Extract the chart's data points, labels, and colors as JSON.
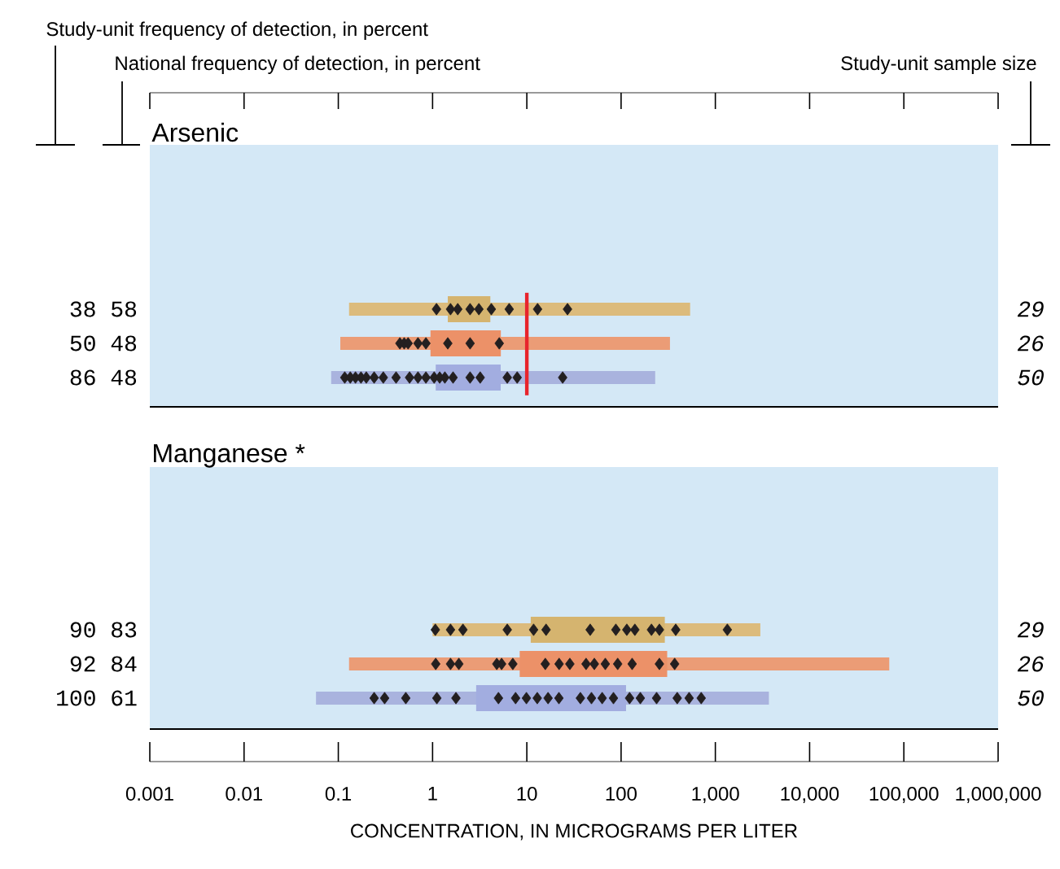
{
  "chart_data": [
    {
      "type": "bar",
      "title": "Arsenic",
      "orientation": "horizontal",
      "log": "x",
      "tick_labels": "y",
      "xlim": [
        0.001,
        1000000
      ],
      "xticks": [
        0.001,
        0.01,
        0.1,
        1,
        10,
        100,
        1000,
        10000,
        100000,
        1000000
      ],
      "categories": [
        "38 58",
        "50 48",
        "86 48"
      ],
      "annotations": [
        "Study-unit frequency of detection, in percent",
        "National frequency of detection, in percent",
        "Study-unit sample size",
        "29",
        "26",
        "50"
      ],
      "series": [
        {
          "colors": [
            "#dcbb7c",
            "#eb9c76",
            "#a9b3de"
          ],
          "base": [
            0.13,
            0.105,
            0.084
          ],
          "values": [
            540,
            330,
            230
          ]
        },
        {
          "colors": [
            "#d5b46f",
            "#ec9168",
            "#a2ade0"
          ],
          "base": [
            1.45,
            0.95,
            1.08
          ],
          "values": [
            2.65,
            4.35,
            4.2
          ]
        },
        {
          "type": "scatter",
          "color": "#231f20",
          "marker": "diamond",
          "x": [
            "38 58",
            "38 58",
            "38 58",
            "38 58",
            "38 58",
            "38 58",
            "38 58",
            "38 58",
            "38 58"
          ],
          "values": [
            1.1,
            1.55,
            1.85,
            2.5,
            3.1,
            4.2,
            6.5,
            13,
            27
          ]
        },
        {
          "type": "scatter",
          "color": "#231f20",
          "marker": "diamond",
          "x": [
            "50 48",
            "50 48",
            "50 48",
            "50 48",
            "50 48",
            "50 48",
            "50 48",
            "50 48"
          ],
          "values": [
            0.45,
            0.5,
            0.55,
            0.7,
            0.85,
            1.45,
            2.5,
            5.1
          ]
        },
        {
          "type": "scatter",
          "color": "#231f20",
          "marker": "diamond",
          "x": [
            "86 48",
            "86 48",
            "86 48",
            "86 48",
            "86 48",
            "86 48",
            "86 48",
            "86 48",
            "86 48",
            "86 48",
            "86 48",
            "86 48",
            "86 48",
            "86 48",
            "86 48",
            "86 48",
            "86 48",
            "86 48",
            "86 48",
            "86 48"
          ],
          "values": [
            0.117,
            0.134,
            0.152,
            0.174,
            0.198,
            0.24,
            0.3,
            0.41,
            0.57,
            0.7,
            0.85,
            1.04,
            1.19,
            1.35,
            1.65,
            2.5,
            3.2,
            6.2,
            7.9,
            24
          ]
        }
      ],
      "ref_lines": [
        {
          "axis": "x",
          "value": 10,
          "color": "#e8242c"
        }
      ]
    },
    {
      "type": "bar",
      "title": "Manganese *",
      "xlabel": "CONCENTRATION, IN MICROGRAMS PER LITER",
      "orientation": "horizontal",
      "log": "x",
      "xlim": [
        0.001,
        1000000
      ],
      "xticks": [
        0.001,
        0.01,
        0.1,
        1,
        10,
        100,
        {
          "value": 1000,
          "label": "1,000"
        },
        {
          "value": 10000,
          "label": "10,000"
        },
        {
          "value": 100000,
          "label": "100,000"
        },
        {
          "value": 1000000,
          "label": "1,000,000"
        }
      ],
      "categories": [
        "90 83",
        "92 84",
        "100 61"
      ],
      "annotations": [
        "29",
        "26",
        "50"
      ],
      "series": [
        {
          "colors": [
            "#dcbb7c",
            "#eb9c76",
            "#a9b3de"
          ],
          "base": [
            1.0,
            0.13,
            0.058
          ],
          "values": [
            3000,
            70000,
            3700
          ]
        },
        {
          "colors": [
            "#d5b46f",
            "#ec9168",
            "#a2ade0"
          ],
          "base": [
            11,
            8.4,
            2.9
          ],
          "values": [
            280,
            300,
            110
          ]
        },
        {
          "type": "scatter",
          "color": "#231f20",
          "marker": "diamond",
          "x": [
            "90 83",
            "90 83",
            "90 83",
            "90 83",
            "90 83",
            "90 83",
            "90 83",
            "90 83",
            "90 83",
            "90 83",
            "90 83",
            "90 83",
            "90 83",
            "90 83"
          ],
          "values": [
            1.07,
            1.55,
            2.1,
            6.2,
            11.8,
            16,
            47,
            88,
            115,
            140,
            210,
            255,
            380,
            1340
          ]
        },
        {
          "type": "scatter",
          "color": "#231f20",
          "marker": "diamond",
          "x": [
            "92 84",
            "92 84",
            "92 84",
            "92 84",
            "92 84",
            "92 84",
            "92 84",
            "92 84",
            "92 84",
            "92 84",
            "92 84",
            "92 84",
            "92 84",
            "92 84",
            "92 84",
            "92 84"
          ],
          "values": [
            1.08,
            1.55,
            1.9,
            4.8,
            5.4,
            7.1,
            15.7,
            22,
            28.6,
            42.5,
            52,
            68,
            92,
            131,
            255,
            370
          ]
        },
        {
          "type": "scatter",
          "color": "#231f20",
          "marker": "diamond",
          "x": [
            "100 61",
            "100 61",
            "100 61",
            "100 61",
            "100 61",
            "100 61",
            "100 61",
            "100 61",
            "100 61",
            "100 61",
            "100 61",
            "100 61",
            "100 61",
            "100 61",
            "100 61",
            "100 61",
            "100 61",
            "100 61",
            "100 61",
            "100 61",
            "100 61"
          ],
          "values": [
            0.24,
            0.31,
            0.52,
            1.11,
            1.77,
            5.0,
            7.6,
            9.9,
            12.9,
            16.8,
            21.9,
            37,
            48.5,
            63,
            83,
            123,
            160,
            238,
            394,
            527,
            708
          ]
        }
      ]
    }
  ]
}
